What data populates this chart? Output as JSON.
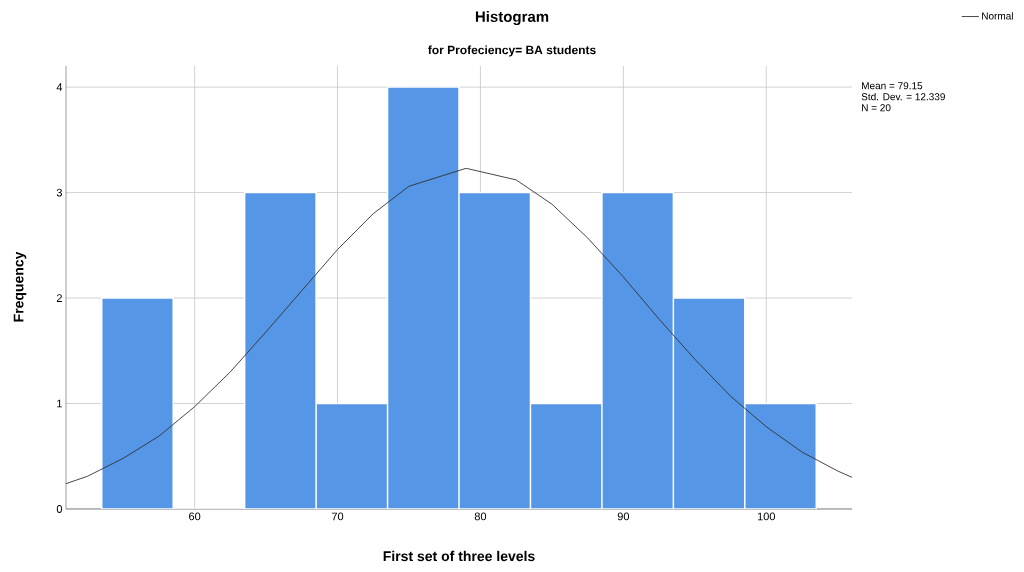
{
  "chart_data": {
    "type": "histogram",
    "title": "Histogram",
    "subtitle": "for Profeciency= BA students",
    "xlabel": "First set of three levels",
    "ylabel": "Frequency",
    "bins": [
      53.5,
      58.5,
      63.5,
      68.5,
      73.5,
      78.5,
      83.5,
      88.5,
      93.5,
      98.5,
      103.5
    ],
    "values": [
      2,
      0,
      3,
      1,
      4,
      3,
      1,
      3,
      2,
      1
    ],
    "color": "#5596e6",
    "series": [
      {
        "name": "Normal",
        "type": "line",
        "color": "#333333",
        "x": [
          51,
          52.5,
          55,
          57.5,
          60,
          62.5,
          65,
          67.5,
          70,
          72.5,
          75,
          79,
          82.5,
          85,
          87.5,
          90,
          92.5,
          95,
          97.5,
          100,
          102.5,
          105,
          106
        ],
        "values": [
          0.24,
          0.31,
          0.48,
          0.69,
          0.97,
          1.3,
          1.68,
          2.07,
          2.46,
          2.8,
          3.06,
          3.23,
          3.12,
          2.89,
          2.57,
          2.2,
          1.8,
          1.42,
          1.07,
          0.78,
          0.54,
          0.36,
          0.3
        ]
      }
    ],
    "annotations": [
      "Mean = 79.15",
      "Std. Dev. = 12.339",
      "N = 20"
    ],
    "xlim": [
      51,
      106
    ],
    "ylim": [
      0,
      4.2
    ],
    "xticks": [
      60,
      70,
      80,
      90,
      100
    ],
    "yticks": [
      0,
      1,
      2,
      3,
      4
    ],
    "grid": true,
    "legend": "top right"
  }
}
